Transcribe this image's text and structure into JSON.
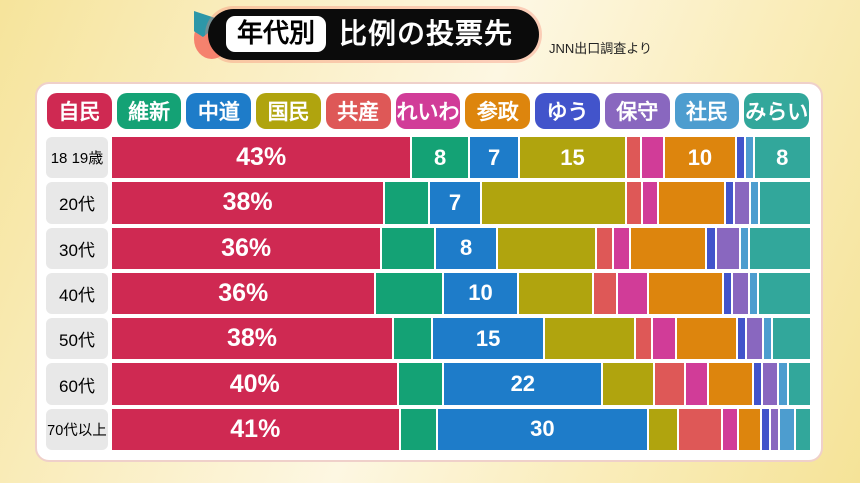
{
  "header": {
    "category_badge": "年代別",
    "title": "比例の投票先",
    "source_note": "JNN出口調査より"
  },
  "chart_data": {
    "type": "bar",
    "variant": "stacked-horizontal",
    "unit": "%",
    "title": "年代別 比例の投票先",
    "source": "JNN出口調査より",
    "legend_position": "top",
    "xlim": [
      0,
      100
    ],
    "parties": [
      {
        "name": "自民",
        "color": "#CF2952"
      },
      {
        "name": "維新",
        "color": "#14A275"
      },
      {
        "name": "中道",
        "color": "#1E7CC9"
      },
      {
        "name": "国民",
        "color": "#B0A40E"
      },
      {
        "name": "共産",
        "color": "#DE5857"
      },
      {
        "name": "れいわ",
        "color": "#D13C98"
      },
      {
        "name": "参政",
        "color": "#DD850D"
      },
      {
        "name": "ゆう",
        "color": "#4254CB"
      },
      {
        "name": "保守",
        "color": "#8967BF"
      },
      {
        "name": "社民",
        "color": "#4D9DCF"
      },
      {
        "name": "みらい",
        "color": "#32A79B"
      }
    ],
    "rows": [
      {
        "age_group": "18 19歳",
        "values": [
          43,
          8,
          7,
          15,
          2,
          3,
          10,
          1,
          0,
          1,
          8
        ],
        "shown_labels": [
          "43%",
          "8",
          "7",
          "15",
          "",
          "",
          "10",
          "",
          "",
          "",
          "8"
        ]
      },
      {
        "age_group": "20代",
        "values": [
          38,
          6,
          7,
          20,
          2,
          2,
          9,
          1,
          2,
          1,
          7
        ],
        "shown_labels": [
          "38%",
          "",
          "7",
          "",
          "",
          "",
          "",
          "",
          "",
          "",
          ""
        ]
      },
      {
        "age_group": "30代",
        "values": [
          36,
          7,
          8,
          13,
          2,
          2,
          10,
          1,
          3,
          1,
          8
        ],
        "shown_labels": [
          "36%",
          "",
          "8",
          "",
          "",
          "",
          "",
          "",
          "",
          "",
          ""
        ]
      },
      {
        "age_group": "40代",
        "values": [
          36,
          9,
          10,
          10,
          3,
          4,
          10,
          1,
          2,
          1,
          7
        ],
        "shown_labels": [
          "36%",
          "",
          "10",
          "",
          "",
          "",
          "",
          "",
          "",
          "",
          ""
        ]
      },
      {
        "age_group": "50代",
        "values": [
          38,
          5,
          15,
          12,
          2,
          3,
          8,
          1,
          2,
          1,
          5
        ],
        "shown_labels": [
          "38%",
          "",
          "15",
          "",
          "",
          "",
          "",
          "",
          "",
          "",
          ""
        ]
      },
      {
        "age_group": "60代",
        "values": [
          40,
          6,
          22,
          7,
          4,
          3,
          6,
          1,
          2,
          1,
          3
        ],
        "shown_labels": [
          "40%",
          "",
          "22",
          "",
          "",
          "",
          "",
          "",
          "",
          "",
          ""
        ]
      },
      {
        "age_group": "70代以上",
        "values": [
          41,
          5,
          30,
          4,
          6,
          2,
          3,
          1,
          1,
          2,
          2
        ],
        "shown_labels": [
          "41%",
          "",
          "30",
          "",
          "",
          "",
          "",
          "",
          "",
          "",
          ""
        ]
      }
    ]
  }
}
